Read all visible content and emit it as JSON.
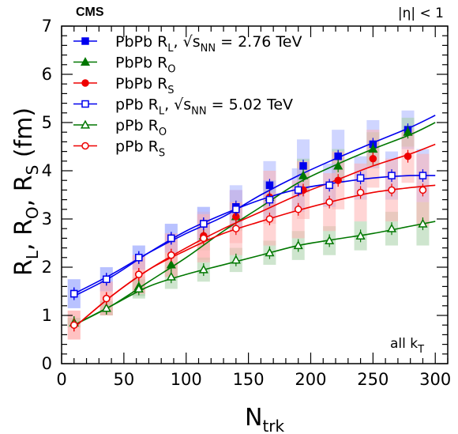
{
  "chart_data": {
    "type": "scatter",
    "label_top_left": "CMS",
    "label_top_right": "|η| < 1",
    "annotation": {
      "main": "all k",
      "sub": "T"
    },
    "xlabel": {
      "main": "N",
      "sub": "trk"
    },
    "ylabel": {
      "parts": [
        {
          "main": "R",
          "sub": "L"
        },
        {
          "main": ", R",
          "sub": "O"
        },
        {
          "main": ", R",
          "sub": "S"
        },
        {
          "main": " (fm)",
          "sub": ""
        }
      ]
    },
    "xlim": [
      0,
      310
    ],
    "ylim": [
      0,
      7
    ],
    "xticks": [
      0,
      50,
      100,
      150,
      200,
      250,
      300
    ],
    "yticks": [
      0,
      1,
      2,
      3,
      4,
      5,
      6,
      7
    ],
    "series": [
      {
        "name": "PbPb R",
        "name_sub": "L",
        "name_suffix": ", √s",
        "name_suffix_sub": "NN",
        "name_suffix_tail": " = 2.76 TeV",
        "color": "#0000ee",
        "band_color": "#a8b2ff",
        "marker": "square",
        "filled": true,
        "x": [
          10,
          36,
          62,
          88,
          114,
          140,
          167,
          194,
          222,
          250,
          278
        ],
        "y": [
          1.45,
          1.75,
          2.2,
          2.6,
          2.9,
          3.25,
          3.7,
          4.1,
          4.3,
          4.55,
          4.85
        ],
        "sys": [
          0.3,
          0.25,
          0.25,
          0.3,
          0.35,
          0.45,
          0.5,
          0.55,
          0.55,
          0.5,
          0.4
        ],
        "fit": [
          [
            10,
            1.45
          ],
          [
            40,
            1.85
          ],
          [
            70,
            2.3
          ],
          [
            100,
            2.7
          ],
          [
            130,
            3.05
          ],
          [
            160,
            3.5
          ],
          [
            190,
            3.9
          ],
          [
            220,
            4.25
          ],
          [
            250,
            4.58
          ],
          [
            280,
            4.9
          ],
          [
            300,
            5.15
          ]
        ]
      },
      {
        "name": "PbPb R",
        "name_sub": "O",
        "color": "#007700",
        "band_color": "#a6cfa6",
        "marker": "triangle",
        "filled": true,
        "x": [
          10,
          36,
          62,
          88,
          114,
          140,
          167,
          194,
          222,
          250,
          278
        ],
        "y": [
          0.85,
          1.15,
          1.6,
          2.05,
          2.65,
          3.05,
          3.45,
          3.9,
          4.1,
          4.45,
          4.8
        ],
        "sys": [
          0.1,
          0.15,
          0.2,
          0.25,
          0.3,
          0.3,
          0.35,
          0.35,
          0.35,
          0.35,
          0.3
        ],
        "fit": [
          [
            10,
            0.8
          ],
          [
            40,
            1.2
          ],
          [
            70,
            1.7
          ],
          [
            100,
            2.2
          ],
          [
            130,
            2.75
          ],
          [
            160,
            3.25
          ],
          [
            190,
            3.75
          ],
          [
            220,
            4.12
          ],
          [
            250,
            4.45
          ],
          [
            280,
            4.75
          ],
          [
            300,
            5.0
          ]
        ]
      },
      {
        "name": "PbPb R",
        "name_sub": "S",
        "color": "#ee0000",
        "band_color": "#ffb3b3",
        "marker": "circle",
        "filled": true,
        "x": [
          10,
          36,
          62,
          88,
          114,
          140,
          167,
          194,
          222,
          250,
          278
        ],
        "y": [
          0.8,
          1.35,
          1.85,
          2.25,
          2.65,
          3.05,
          3.45,
          3.6,
          3.8,
          4.25,
          4.3
        ],
        "sys": [
          0.3,
          0.35,
          0.4,
          0.45,
          0.5,
          0.55,
          0.55,
          0.6,
          0.6,
          0.6,
          0.55
        ],
        "fit": [
          [
            10,
            0.75
          ],
          [
            40,
            1.4
          ],
          [
            70,
            1.95
          ],
          [
            100,
            2.4
          ],
          [
            130,
            2.8
          ],
          [
            160,
            3.15
          ],
          [
            190,
            3.5
          ],
          [
            220,
            3.8
          ],
          [
            250,
            4.1
          ],
          [
            280,
            4.35
          ],
          [
            300,
            4.55
          ]
        ]
      },
      {
        "name": "pPb R",
        "name_sub": "L",
        "name_suffix": ", √s",
        "name_suffix_sub": "NN",
        "name_suffix_tail": " = 5.02 TeV",
        "color": "#0000ee",
        "band_color": "#a8b2ff",
        "marker": "square",
        "filled": false,
        "x": [
          10,
          36,
          62,
          88,
          114,
          140,
          167,
          190,
          215,
          240,
          265,
          290
        ],
        "y": [
          1.45,
          1.75,
          2.2,
          2.6,
          2.9,
          3.2,
          3.4,
          3.6,
          3.7,
          3.85,
          3.9,
          3.9
        ],
        "sys": [
          0.3,
          0.25,
          0.25,
          0.3,
          0.35,
          0.4,
          0.4,
          0.45,
          0.45,
          0.45,
          0.5,
          0.55
        ],
        "fit": [
          [
            10,
            1.4
          ],
          [
            40,
            1.8
          ],
          [
            70,
            2.3
          ],
          [
            100,
            2.75
          ],
          [
            130,
            3.1
          ],
          [
            160,
            3.4
          ],
          [
            190,
            3.62
          ],
          [
            220,
            3.75
          ],
          [
            250,
            3.85
          ],
          [
            280,
            3.9
          ],
          [
            300,
            3.9
          ]
        ]
      },
      {
        "name": "pPb R",
        "name_sub": "O",
        "color": "#007700",
        "band_color": "#a6cfa6",
        "marker": "triangle",
        "filled": false,
        "x": [
          10,
          36,
          62,
          88,
          114,
          140,
          167,
          190,
          215,
          240,
          265,
          290
        ],
        "y": [
          0.85,
          1.15,
          1.55,
          1.8,
          1.95,
          2.15,
          2.3,
          2.45,
          2.55,
          2.65,
          2.8,
          2.9
        ],
        "sys": [
          0.1,
          0.15,
          0.2,
          0.25,
          0.25,
          0.25,
          0.25,
          0.3,
          0.3,
          0.3,
          0.35,
          0.45
        ],
        "fit": [
          [
            10,
            0.8
          ],
          [
            40,
            1.2
          ],
          [
            70,
            1.6
          ],
          [
            100,
            1.85
          ],
          [
            130,
            2.05
          ],
          [
            160,
            2.25
          ],
          [
            190,
            2.45
          ],
          [
            220,
            2.58
          ],
          [
            250,
            2.7
          ],
          [
            280,
            2.85
          ],
          [
            300,
            2.95
          ]
        ]
      },
      {
        "name": "pPb R",
        "name_sub": "S",
        "color": "#ee0000",
        "band_color": "#ffb3b3",
        "marker": "circle",
        "filled": false,
        "x": [
          10,
          36,
          62,
          88,
          114,
          140,
          167,
          190,
          215,
          240,
          265,
          290
        ],
        "y": [
          0.8,
          1.35,
          1.85,
          2.25,
          2.6,
          2.8,
          3.0,
          3.2,
          3.35,
          3.55,
          3.6,
          3.6
        ],
        "sys": [
          0.3,
          0.35,
          0.4,
          0.45,
          0.5,
          0.55,
          0.55,
          0.6,
          0.6,
          0.6,
          0.65,
          0.75
        ],
        "fit": [
          [
            10,
            0.75
          ],
          [
            40,
            1.4
          ],
          [
            70,
            1.95
          ],
          [
            100,
            2.35
          ],
          [
            130,
            2.7
          ],
          [
            160,
            2.95
          ],
          [
            190,
            3.18
          ],
          [
            220,
            3.38
          ],
          [
            250,
            3.55
          ],
          [
            280,
            3.65
          ],
          [
            300,
            3.7
          ]
        ]
      }
    ],
    "legend_position": "top-left"
  }
}
